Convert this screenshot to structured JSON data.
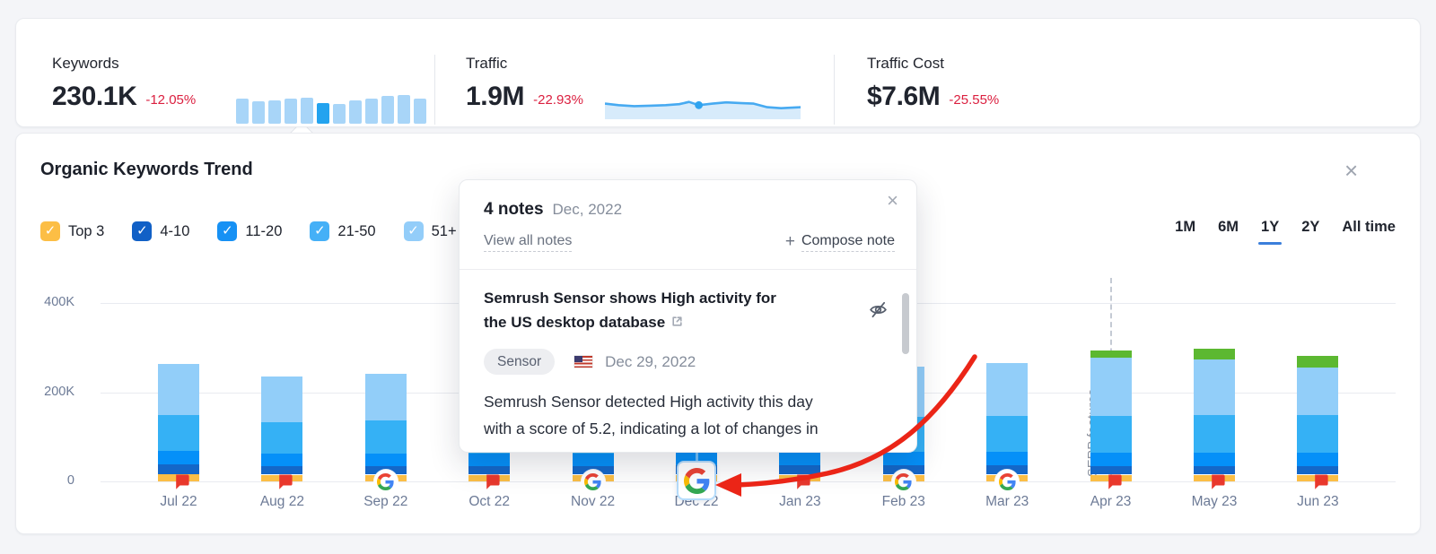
{
  "header_metrics": {
    "keywords": {
      "label": "Keywords",
      "value": "230.1K",
      "delta": "-12.05%",
      "spark": {
        "values": [
          0.88,
          0.79,
          0.82,
          0.86,
          0.9,
          0.72,
          0.69,
          0.82,
          0.88,
          0.98,
          1.0,
          0.88
        ],
        "active_index": 5,
        "bar_color": "#A8D5F8",
        "active_color": "#23A3EF"
      }
    },
    "traffic": {
      "label": "Traffic",
      "value": "1.9M",
      "delta": "-22.93%",
      "spark": {
        "points": [
          [
            0,
            0.38
          ],
          [
            0.07,
            0.44
          ],
          [
            0.15,
            0.48
          ],
          [
            0.23,
            0.46
          ],
          [
            0.31,
            0.44
          ],
          [
            0.38,
            0.4
          ],
          [
            0.43,
            0.31
          ],
          [
            0.48,
            0.44
          ],
          [
            0.55,
            0.38
          ],
          [
            0.62,
            0.33
          ],
          [
            0.7,
            0.36
          ],
          [
            0.76,
            0.38
          ],
          [
            0.83,
            0.52
          ],
          [
            0.9,
            0.56
          ],
          [
            1,
            0.52
          ]
        ],
        "dot_index": 7,
        "line_color": "#47AAF1",
        "fill_color": "#D7EBFB",
        "dot_color": "#2FA3EF"
      }
    },
    "traffic_cost": {
      "label": "Traffic Cost",
      "value": "$7.6M",
      "delta": "-25.55%"
    }
  },
  "panel": {
    "title": "Organic Keywords Trend",
    "close_icon": "×",
    "check_glyph": "✓",
    "legend": [
      {
        "label": "Top 3",
        "color": "#FCBE45",
        "checked": true
      },
      {
        "label": "4-10",
        "color": "#1160C6",
        "checked": true
      },
      {
        "label": "11-20",
        "color": "#1791F4",
        "checked": true
      },
      {
        "label": "21-50",
        "color": "#45B0F7",
        "checked": true
      },
      {
        "label": "51+",
        "color": "#93CDF9",
        "checked": true
      }
    ],
    "ranges": {
      "options": [
        "1M",
        "6M",
        "1Y",
        "2Y",
        "All time"
      ],
      "active": "1Y"
    }
  },
  "chart_data": {
    "type": "bar",
    "stacked": true,
    "title": "Organic Keywords Trend",
    "unit": "keywords",
    "value_scale": "thousands",
    "categories": [
      "Jul 22",
      "Aug 22",
      "Sep 22",
      "Oct 22",
      "Nov 22",
      "Dec 22",
      "Jan 23",
      "Feb 23",
      "Mar 23",
      "Apr 23",
      "May 23",
      "Jun 23"
    ],
    "series": [
      {
        "name": "Top 3",
        "color": "#FCBE45",
        "values": [
          16,
          15,
          15,
          15,
          15,
          15,
          15,
          15,
          15,
          15,
          15,
          15
        ]
      },
      {
        "name": "4-10",
        "color": "#1467C8",
        "values": [
          22,
          20,
          20,
          20,
          20,
          21,
          21,
          21,
          21,
          20,
          20,
          20
        ]
      },
      {
        "name": "11-20",
        "color": "#0590F8",
        "values": [
          30,
          28,
          28,
          27,
          28,
          29,
          29,
          30,
          30,
          30,
          30,
          30
        ]
      },
      {
        "name": "21-50",
        "color": "#35B1F5",
        "values": [
          80,
          70,
          73,
          68,
          71,
          74,
          76,
          78,
          80,
          82,
          83,
          83
        ]
      },
      {
        "name": "51+",
        "color": "#92CEF9",
        "values": [
          115,
          102,
          106,
          100,
          104,
          108,
          111,
          114,
          120,
          130,
          125,
          107
        ]
      },
      {
        "name": "SERP features",
        "color": "#5CB831",
        "values": [
          0,
          0,
          0,
          0,
          0,
          0,
          0,
          0,
          0,
          16,
          24,
          26
        ]
      }
    ],
    "y_ticks": [
      {
        "label": "400K",
        "value": 400
      },
      {
        "label": "200K",
        "value": 200
      },
      {
        "label": "0",
        "value": 0
      }
    ],
    "ylim": [
      0,
      420
    ],
    "grid": true,
    "legend_position": "top-left",
    "markers": [
      "note-flag",
      "note-flag",
      "google-update",
      "note-flag",
      "google-update",
      "google-update-selected",
      "note-flag",
      "google-update",
      "google-update",
      "note-flag",
      "note-flag",
      "note-flag"
    ],
    "marker_flag_color": "#E9382C",
    "annotation": {
      "label": "SERP features",
      "category": "Apr 23"
    }
  },
  "notes_popup": {
    "title": "4 notes",
    "subtitle": "Dec, 2022",
    "close_icon": "×",
    "view_all_label": "View all notes",
    "compose_plus": "+",
    "compose_label": "Compose note",
    "note": {
      "title": "Semrush Sensor shows High activity for\nthe US desktop database",
      "badge": "Sensor",
      "flag": "us-flag",
      "date": "Dec 29, 2022",
      "body": "Semrush Sensor detected High activity this day\nwith a score of 5.2, indicating a lot of changes in"
    }
  },
  "arrow_annotation": {
    "color": "#EB2517"
  }
}
